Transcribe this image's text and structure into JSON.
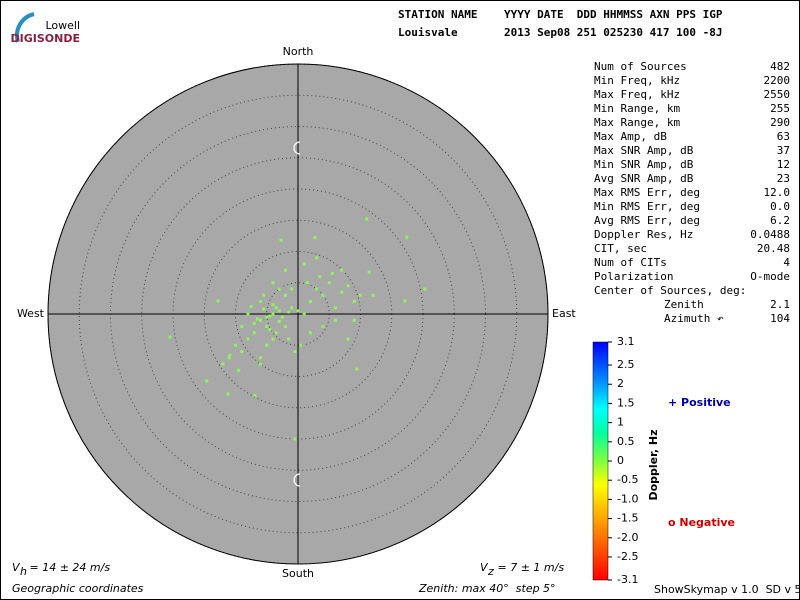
{
  "logo": {
    "top": "Lowell",
    "bottom": "DIGISONDE"
  },
  "header": {
    "line1": "STATION NAME    YYYY DATE  DDD HHMMSS AXN PPS IGP",
    "line2": "Louisvale       2013 Sep08 251 025230 417 100 -8J"
  },
  "stats": {
    "rows": [
      [
        "Num of Sources",
        "482"
      ],
      [
        "Min Freq, kHz",
        "2200"
      ],
      [
        "Max Freq, kHz",
        "2550"
      ],
      [
        "Min Range, km",
        "255"
      ],
      [
        "Max Range, km",
        "290"
      ],
      [
        "Max Amp, dB",
        "63"
      ],
      [
        "Max SNR Amp, dB",
        "37"
      ],
      [
        "Min SNR Amp, dB",
        "12"
      ],
      [
        "Avg SNR Amp, dB",
        "23"
      ],
      [
        "Max RMS Err, deg",
        "12.0"
      ],
      [
        "Min RMS Err, deg",
        "0.0"
      ],
      [
        "Avg RMS Err, deg",
        "6.2"
      ],
      [
        "Doppler Res, Hz",
        "0.0488"
      ],
      [
        "CIT, sec",
        "20.48"
      ],
      [
        "Num of CITs",
        "4"
      ],
      [
        "Polarization",
        "O-mode"
      ]
    ],
    "center_title": "Center of Sources, deg:",
    "center_rows": [
      [
        "Zenith",
        "2.1"
      ],
      [
        "Azimuth ↶",
        "104"
      ]
    ]
  },
  "chart_data": {
    "type": "polar-scatter",
    "directions": {
      "north": "North",
      "south": "South",
      "east": "East",
      "west": "West"
    },
    "rlim": [
      0,
      40
    ],
    "rticks": [
      5,
      10,
      15,
      20,
      25,
      30,
      35,
      40
    ],
    "series": [
      {
        "name": "Sources",
        "color": "#8cf55a",
        "x": [
          11.0,
          17.4,
          20.3,
          17.1,
          -20.5,
          -14.6,
          -11.2,
          -6.9,
          -0.5,
          9.4,
          11.4,
          2.7,
          -2.7,
          -12.8,
          -10.9,
          -5,
          -4,
          -6,
          -3,
          -7,
          -5.5,
          -4.5,
          -3.5,
          -6.5,
          -2.5,
          -8,
          -1.5,
          -5,
          -4,
          -3,
          -7.5,
          -6,
          -2,
          -1,
          0,
          1,
          -9,
          -3.5,
          -4.5,
          -5.5,
          2,
          3,
          4,
          5,
          6,
          7,
          8,
          9,
          10,
          3.5,
          5.5,
          1.5,
          -1,
          -2,
          -3,
          -8,
          -10,
          -9,
          -6,
          -5,
          -7,
          -4,
          4,
          6,
          8,
          2,
          0.5,
          -0.5,
          -1.5,
          -6,
          -9.5,
          -11,
          1,
          3,
          7,
          12,
          9,
          -2,
          -4,
          -12
        ],
        "y": [
          15.2,
          12.3,
          4.0,
          2.1,
          -3.7,
          -10.7,
          -12.8,
          -13.0,
          -20.0,
          -8.8,
          6.7,
          12.2,
          11.8,
          2.1,
          -6.6,
          -0.5,
          0,
          -1,
          0.5,
          -1.5,
          0.8,
          -0.3,
          1,
          -0.8,
          -0.5,
          0,
          0.3,
          -2,
          1.5,
          -1.2,
          1.2,
          2,
          -2,
          1,
          0.5,
          0,
          -2,
          -3,
          -2.5,
          3,
          2,
          4,
          3,
          5,
          1,
          3.5,
          4.5,
          2,
          3,
          6,
          6.5,
          5,
          4,
          3,
          4,
          -4,
          -5,
          -6,
          -7,
          -5,
          -3,
          -4,
          -2,
          -1,
          -4,
          -3,
          -5,
          -6,
          -4,
          -8,
          -9,
          -7,
          8,
          9,
          7,
          3,
          -1,
          7,
          5,
          -8
        ]
      }
    ],
    "colorbar": {
      "label": "Doppler, Hz",
      "lim": [
        -3.1,
        3.1
      ],
      "ticks": [
        3.1,
        2.5,
        2,
        1.5,
        1,
        0.5,
        0,
        -0.5,
        {
          "value": -1,
          "label": "-1.0"
        },
        -1.5,
        {
          "value": -2,
          "label": "-2.0"
        },
        -2.5,
        -3.1
      ]
    },
    "legend": {
      "positive": "+ Positive",
      "negative": "o Negative"
    }
  },
  "footer": {
    "vh_main": "V",
    "vh_sub": "h",
    "vh_rest": " = 14 ± 24 m/s",
    "vz_main": "V",
    "vz_sub": "z",
    "vz_rest": " = 7 ± 1 m/s",
    "coords": "Geographic coordinates",
    "zenith": "Zenith: max 40°  step 5°",
    "version": "ShowSkymap v 1.0  SD v 5.1"
  }
}
